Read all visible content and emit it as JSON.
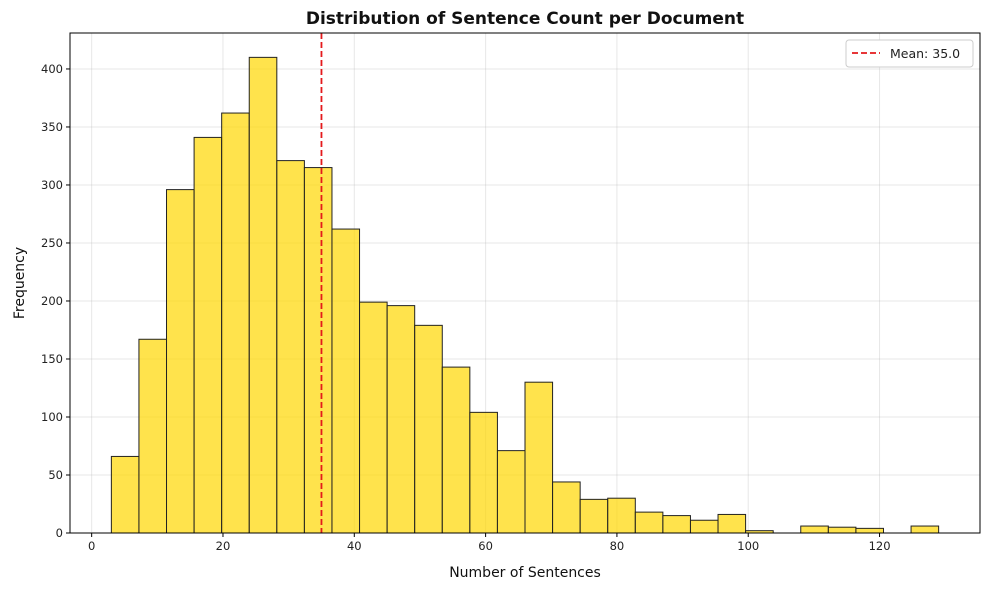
{
  "chart_data": {
    "type": "bar",
    "title": "Distribution of Sentence Count per Document",
    "xlabel": "Number of Sentences",
    "ylabel": "Frequency",
    "xlim": [
      -3.3,
      135.3
    ],
    "ylim": [
      0,
      431
    ],
    "xticks": [
      0,
      20,
      40,
      60,
      80,
      100,
      120
    ],
    "yticks": [
      0,
      50,
      100,
      150,
      200,
      250,
      300,
      350,
      400
    ],
    "grid": true,
    "bin_start": 3,
    "bin_width": 4.2,
    "values": [
      66,
      167,
      296,
      341,
      362,
      410,
      321,
      315,
      262,
      199,
      196,
      179,
      143,
      104,
      71,
      130,
      44,
      29,
      30,
      18,
      15,
      11,
      16,
      2,
      0,
      6,
      5,
      4,
      0,
      6
    ],
    "bar_color": "#ffd700",
    "bar_edge_color": "#222222",
    "mean_line": {
      "value": 35.0,
      "color": "#e41a1c",
      "label": "Mean: 35.0"
    },
    "legend": {
      "position": "top-right",
      "entries": [
        "Mean: 35.0"
      ]
    }
  }
}
